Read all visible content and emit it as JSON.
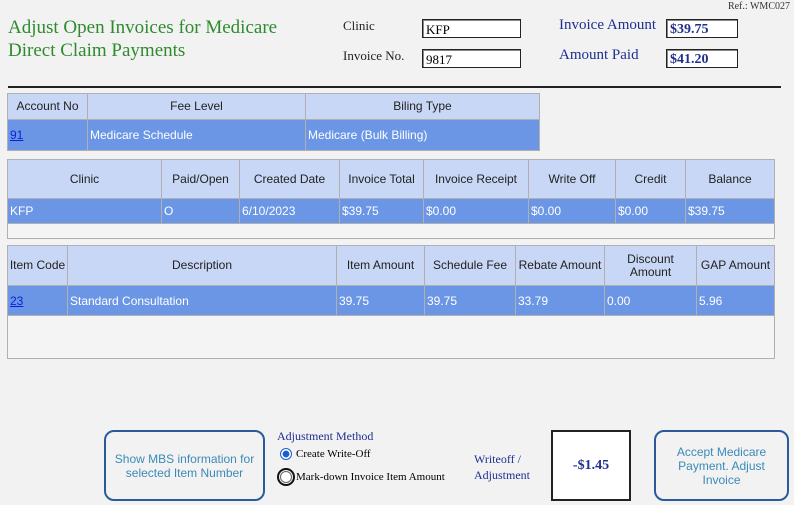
{
  "ref": "Ref.: WMC027",
  "title": "Adjust Open Invoices for Medicare Direct Claim Payments",
  "fields": {
    "clinic_label": "Clinic",
    "clinic_value": "KFP",
    "invoice_no_label": "Invoice No.",
    "invoice_no_value": "9817",
    "invoice_amount_label": "Invoice Amount",
    "invoice_amount_value": "$39.75",
    "amount_paid_label": "Amount Paid",
    "amount_paid_value": "$41.20"
  },
  "account_table": {
    "headers": [
      "Account No",
      "Fee Level",
      "Biling Type"
    ],
    "row": {
      "account_no": "91",
      "fee_level": "Medicare Schedule",
      "billing_type": "Medicare (Bulk Billing)"
    }
  },
  "invoice_table": {
    "headers": [
      "Clinic",
      "Paid/Open",
      "Created Date",
      "Invoice Total",
      "Invoice Receipt",
      "Write Off",
      "Credit",
      "Balance"
    ],
    "row": [
      "KFP",
      "O",
      "6/10/2023",
      "$39.75",
      "$0.00",
      "$0.00",
      "$0.00",
      "$39.75"
    ]
  },
  "item_table": {
    "headers": [
      "Item Code",
      "Description",
      "Item Amount",
      "Schedule Fee",
      "Rebate Amount",
      "Discount Amount",
      "GAP Amount"
    ],
    "row": {
      "code": "23",
      "cells": [
        "Standard Consultation",
        "39.75",
        "39.75",
        "33.79",
        "0.00",
        "5.96"
      ]
    }
  },
  "buttons": {
    "show_mbs": "Show MBS information for selected Item Number",
    "accept": "Accept Medicare Payment. Adjust Invoice"
  },
  "adjustment": {
    "label": "Adjustment Method",
    "option1": "Create Write-Off",
    "option2": "Mark-down Invoice Item Amount",
    "writeoff_label": "Writeoff / Adjustment",
    "writeoff_value": "-$1.45"
  }
}
